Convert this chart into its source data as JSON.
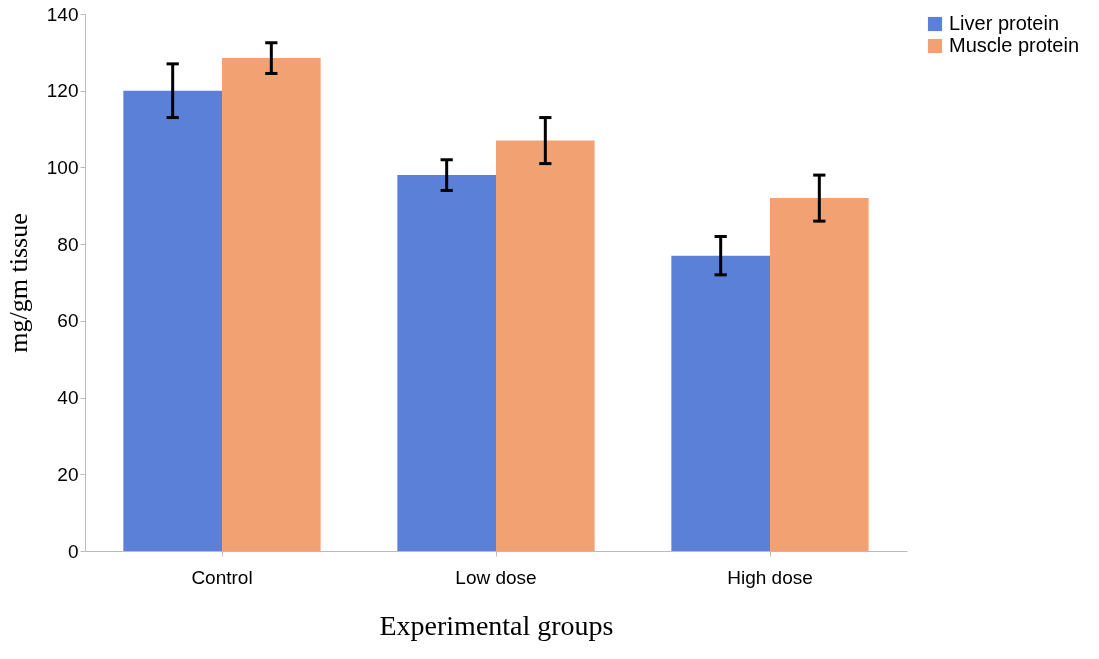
{
  "chart_data": {
    "type": "bar",
    "xlabel": "Experimental groups",
    "ylabel": "mg/gm tissue",
    "categories": [
      "Control",
      "Low dose",
      "High dose"
    ],
    "series": [
      {
        "name": "Liver protein",
        "color": "#5b80d8",
        "values": [
          120,
          98,
          77
        ],
        "errors": [
          7,
          4,
          5
        ]
      },
      {
        "name": "Muscle protein",
        "color": "#f2a272",
        "values": [
          128.5,
          107,
          92
        ],
        "errors": [
          4,
          6,
          6
        ]
      }
    ],
    "ylim": [
      0,
      140
    ],
    "yticks": [
      0,
      20,
      40,
      60,
      80,
      100,
      120,
      140
    ],
    "grid": false,
    "legend": "right"
  }
}
